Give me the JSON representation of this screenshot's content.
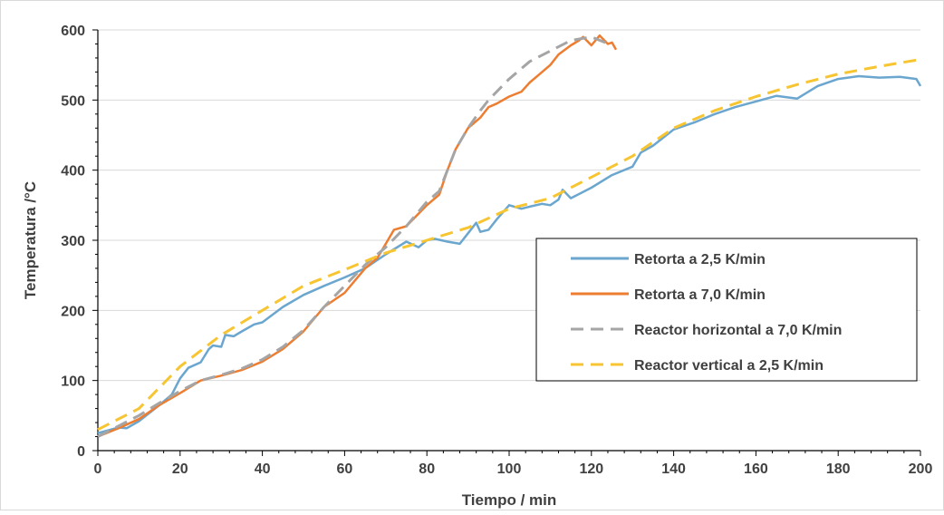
{
  "chart_data": {
    "type": "line",
    "title": "",
    "xlabel": "Tiempo / min",
    "ylabel": "Temperatura /°C",
    "xlim": [
      0,
      200
    ],
    "ylim": [
      0,
      600
    ],
    "xticks": [
      0,
      20,
      40,
      60,
      80,
      100,
      120,
      140,
      160,
      180,
      200
    ],
    "yticks": [
      0,
      100,
      200,
      300,
      400,
      500,
      600
    ],
    "grid": "horizontal",
    "legend_position": "center-right",
    "series": [
      {
        "name": "Retorta a 2,5 K/min",
        "color": "#6ba6cf",
        "dash": "solid",
        "x": [
          0,
          5,
          7,
          10,
          15,
          18,
          20,
          22,
          25,
          27,
          28,
          30,
          31,
          33,
          35,
          38,
          40,
          45,
          50,
          55,
          60,
          65,
          70,
          75,
          78,
          80,
          82,
          85,
          88,
          90,
          92,
          93,
          95,
          97,
          100,
          103,
          105,
          108,
          110,
          112,
          113,
          115,
          120,
          125,
          130,
          132,
          135,
          140,
          145,
          150,
          155,
          160,
          165,
          170,
          175,
          180,
          185,
          190,
          195,
          199,
          200
        ],
        "y": [
          25,
          33,
          32,
          42,
          65,
          80,
          103,
          118,
          126,
          145,
          150,
          148,
          165,
          163,
          170,
          180,
          183,
          205,
          222,
          235,
          247,
          260,
          280,
          298,
          290,
          300,
          302,
          298,
          295,
          310,
          325,
          312,
          315,
          330,
          350,
          345,
          348,
          352,
          350,
          358,
          372,
          360,
          375,
          393,
          405,
          425,
          435,
          458,
          468,
          480,
          490,
          498,
          506,
          502,
          520,
          530,
          534,
          532,
          533,
          530,
          520
        ]
      },
      {
        "name": "Retorta a 7,0 K/min",
        "color": "#ed7d31",
        "dash": "solid",
        "x": [
          0,
          5,
          10,
          15,
          20,
          25,
          30,
          35,
          40,
          45,
          50,
          55,
          60,
          65,
          68,
          70,
          72,
          75,
          80,
          83,
          85,
          87,
          90,
          93,
          95,
          97,
          100,
          103,
          105,
          107,
          110,
          112,
          115,
          117,
          118,
          120,
          122,
          124,
          125,
          126
        ],
        "y": [
          20,
          32,
          45,
          65,
          82,
          100,
          107,
          115,
          127,
          145,
          170,
          205,
          225,
          260,
          275,
          295,
          315,
          320,
          350,
          365,
          400,
          430,
          460,
          475,
          490,
          495,
          505,
          512,
          525,
          535,
          550,
          565,
          578,
          585,
          590,
          578,
          592,
          580,
          582,
          572
        ]
      },
      {
        "name": "Reactor horizontal a 7,0 K/min",
        "color": "#a5a5a5",
        "dash": "dash",
        "x": [
          0,
          5,
          10,
          15,
          20,
          25,
          30,
          35,
          40,
          45,
          50,
          55,
          60,
          65,
          70,
          75,
          80,
          83,
          85,
          87,
          90,
          93,
          95,
          100,
          105,
          110,
          115,
          120,
          125
        ],
        "y": [
          20,
          35,
          50,
          68,
          85,
          100,
          108,
          117,
          130,
          148,
          172,
          205,
          235,
          265,
          290,
          320,
          355,
          370,
          400,
          430,
          460,
          485,
          500,
          530,
          555,
          570,
          585,
          590,
          578
        ]
      },
      {
        "name": "Reactor vertical a 2,5 K/min",
        "color": "#f7c531",
        "dash": "dash",
        "x": [
          0,
          10,
          20,
          30,
          40,
          50,
          60,
          70,
          80,
          90,
          100,
          110,
          120,
          130,
          140,
          150,
          160,
          170,
          180,
          190,
          200
        ],
        "y": [
          30,
          60,
          120,
          165,
          200,
          235,
          258,
          282,
          300,
          318,
          345,
          360,
          390,
          420,
          460,
          485,
          505,
          522,
          537,
          548,
          558
        ]
      }
    ]
  }
}
